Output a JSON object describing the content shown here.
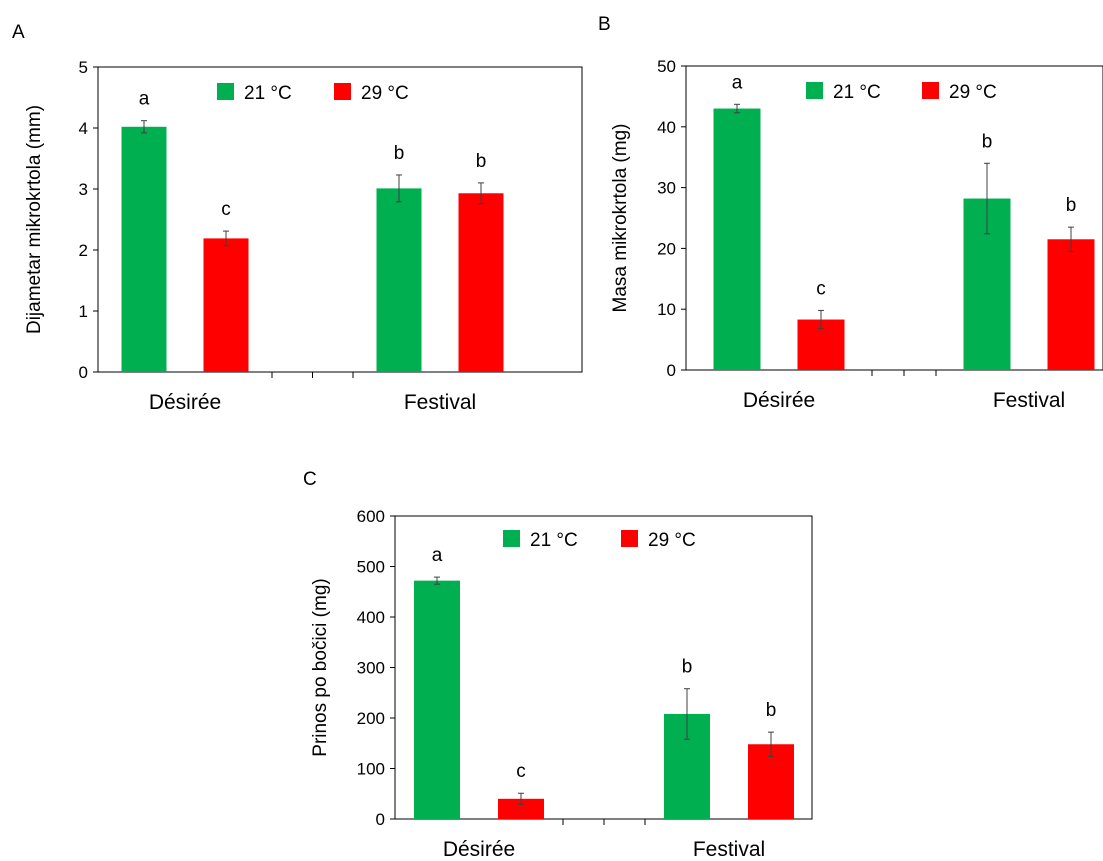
{
  "colors": {
    "series_21": "#00b050",
    "series_29": "#ff0000",
    "axis": "#000000",
    "error_bar": "#404040"
  },
  "chart_data": [
    {
      "panel": "A",
      "type": "bar",
      "ylabel": "Dijametar mikrokrtola (mm)",
      "ylim": [
        0,
        5
      ],
      "yticks": [
        0,
        1,
        2,
        3,
        4,
        5
      ],
      "categories": [
        "Désirée",
        "Festival"
      ],
      "legend_position": "top-center",
      "series": [
        {
          "name": "21 °C",
          "values": [
            4.02,
            3.01
          ],
          "errors": [
            0.1,
            0.22
          ],
          "labels": [
            "a",
            "b"
          ]
        },
        {
          "name": "29 °C",
          "values": [
            2.19,
            2.93
          ],
          "errors": [
            0.12,
            0.17
          ],
          "labels": [
            "c",
            "b"
          ]
        }
      ]
    },
    {
      "panel": "B",
      "type": "bar",
      "ylabel": "Masa mikrokrtola (mg)",
      "ylim": [
        0,
        50
      ],
      "yticks": [
        0,
        10,
        20,
        30,
        40,
        50
      ],
      "categories": [
        "Désirée",
        "Festival"
      ],
      "legend_position": "top-center",
      "series": [
        {
          "name": "21 °C",
          "values": [
            43.0,
            28.2
          ],
          "errors": [
            0.7,
            5.8
          ],
          "labels": [
            "a",
            "b"
          ]
        },
        {
          "name": "29 °C",
          "values": [
            8.3,
            21.5
          ],
          "errors": [
            1.5,
            2.0
          ],
          "labels": [
            "c",
            "b"
          ]
        }
      ]
    },
    {
      "panel": "C",
      "type": "bar",
      "ylabel": "Prinos po bočici (mg)",
      "ylim": [
        0,
        600
      ],
      "yticks": [
        0,
        100,
        200,
        300,
        400,
        500,
        600
      ],
      "categories": [
        "Désirée",
        "Festival"
      ],
      "legend_position": "top-center",
      "series": [
        {
          "name": "21 °C",
          "values": [
            472,
            208
          ],
          "errors": [
            7,
            50
          ],
          "labels": [
            "a",
            "b"
          ]
        },
        {
          "name": "29 °C",
          "values": [
            40,
            148
          ],
          "errors": [
            11,
            24
          ],
          "labels": [
            "c",
            "b"
          ]
        }
      ]
    }
  ]
}
